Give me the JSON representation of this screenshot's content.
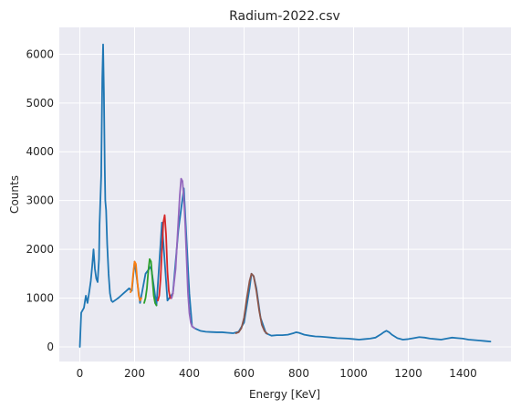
{
  "chart_data": {
    "type": "line",
    "title": "Radium-2022.csv",
    "xlabel": "Energy [KeV]",
    "ylabel": "Counts",
    "xlim": [
      -75,
      1575
    ],
    "ylim": [
      -300,
      6550
    ],
    "xticks": [
      0,
      200,
      400,
      600,
      800,
      1000,
      1200,
      1400
    ],
    "yticks": [
      0,
      1000,
      2000,
      3000,
      4000,
      5000,
      6000
    ],
    "grid": true,
    "background": "#eaeaf2",
    "series": [
      {
        "color": "#1f77b4",
        "x": [
          0,
          5,
          15,
          22,
          28,
          35,
          40,
          45,
          50,
          55,
          60,
          65,
          70,
          72,
          78,
          82,
          85,
          88,
          91,
          93,
          96,
          100,
          105,
          110,
          115,
          120,
          130,
          140,
          150,
          160,
          170,
          180,
          190,
          200,
          220,
          240,
          260,
          280,
          300,
          320,
          340,
          360,
          380,
          400,
          410,
          420,
          440,
          460,
          480,
          500,
          520,
          540,
          560,
          580,
          600,
          620,
          627,
          635,
          645,
          660,
          680,
          700,
          720,
          740,
          760,
          780,
          790,
          800,
          820,
          840,
          860,
          880,
          900,
          920,
          940,
          960,
          980,
          1000,
          1020,
          1040,
          1060,
          1080,
          1100,
          1110,
          1120,
          1130,
          1140,
          1160,
          1180,
          1200,
          1220,
          1240,
          1260,
          1280,
          1300,
          1320,
          1340,
          1360,
          1380,
          1400,
          1420,
          1440,
          1460,
          1480,
          1500
        ],
        "y": [
          0,
          700,
          800,
          1050,
          900,
          1150,
          1350,
          1650,
          2000,
          1600,
          1400,
          1330,
          1800,
          2500,
          3500,
          5500,
          6200,
          5200,
          3700,
          3000,
          2800,
          2100,
          1500,
          1100,
          950,
          920,
          960,
          1000,
          1050,
          1100,
          1150,
          1200,
          1150,
          1750,
          900,
          1500,
          1650,
          850,
          2550,
          950,
          1100,
          2400,
          3250,
          1100,
          420,
          380,
          330,
          310,
          305,
          300,
          300,
          290,
          280,
          310,
          500,
          1200,
          1500,
          1450,
          1200,
          600,
          280,
          230,
          240,
          240,
          250,
          280,
          300,
          290,
          250,
          230,
          215,
          210,
          200,
          190,
          180,
          175,
          170,
          160,
          150,
          160,
          170,
          190,
          260,
          300,
          330,
          300,
          250,
          180,
          150,
          160,
          180,
          200,
          190,
          170,
          160,
          150,
          170,
          190,
          180,
          170,
          150,
          140,
          130,
          120,
          110
        ]
      },
      {
        "color": "#ff7f0e",
        "x": [
          185,
          190,
          195,
          200,
          205,
          210,
          215,
          220,
          225
        ],
        "y": [
          1120,
          1200,
          1500,
          1750,
          1700,
          1350,
          1050,
          950,
          1000
        ]
      },
      {
        "color": "#2ca02c",
        "x": [
          235,
          240,
          245,
          250,
          255,
          260,
          265,
          270,
          275,
          280
        ],
        "y": [
          900,
          1000,
          1200,
          1550,
          1800,
          1750,
          1400,
          1050,
          900,
          850
        ]
      },
      {
        "color": "#d62728",
        "x": [
          285,
          290,
          295,
          300,
          305,
          310,
          315,
          320,
          325,
          330,
          335,
          340
        ],
        "y": [
          950,
          1050,
          1400,
          2000,
          2550,
          2700,
          2300,
          1550,
          1150,
          1000,
          1000,
          1100
        ]
      },
      {
        "color": "#9467bd",
        "x": [
          335,
          340,
          350,
          360,
          365,
          370,
          375,
          380,
          385,
          390,
          395,
          400,
          405,
          410,
          415,
          420
        ],
        "y": [
          1000,
          1100,
          1600,
          2600,
          3100,
          3450,
          3400,
          3050,
          2500,
          1800,
          1100,
          700,
          500,
          420,
          400,
          380
        ]
      },
      {
        "color": "#8c564b",
        "x": [
          570,
          580,
          590,
          600,
          610,
          620,
          627,
          635,
          645,
          655,
          665,
          675,
          685
        ],
        "y": [
          280,
          300,
          380,
          600,
          1000,
          1350,
          1500,
          1450,
          1150,
          750,
          450,
          320,
          270
        ]
      }
    ]
  }
}
